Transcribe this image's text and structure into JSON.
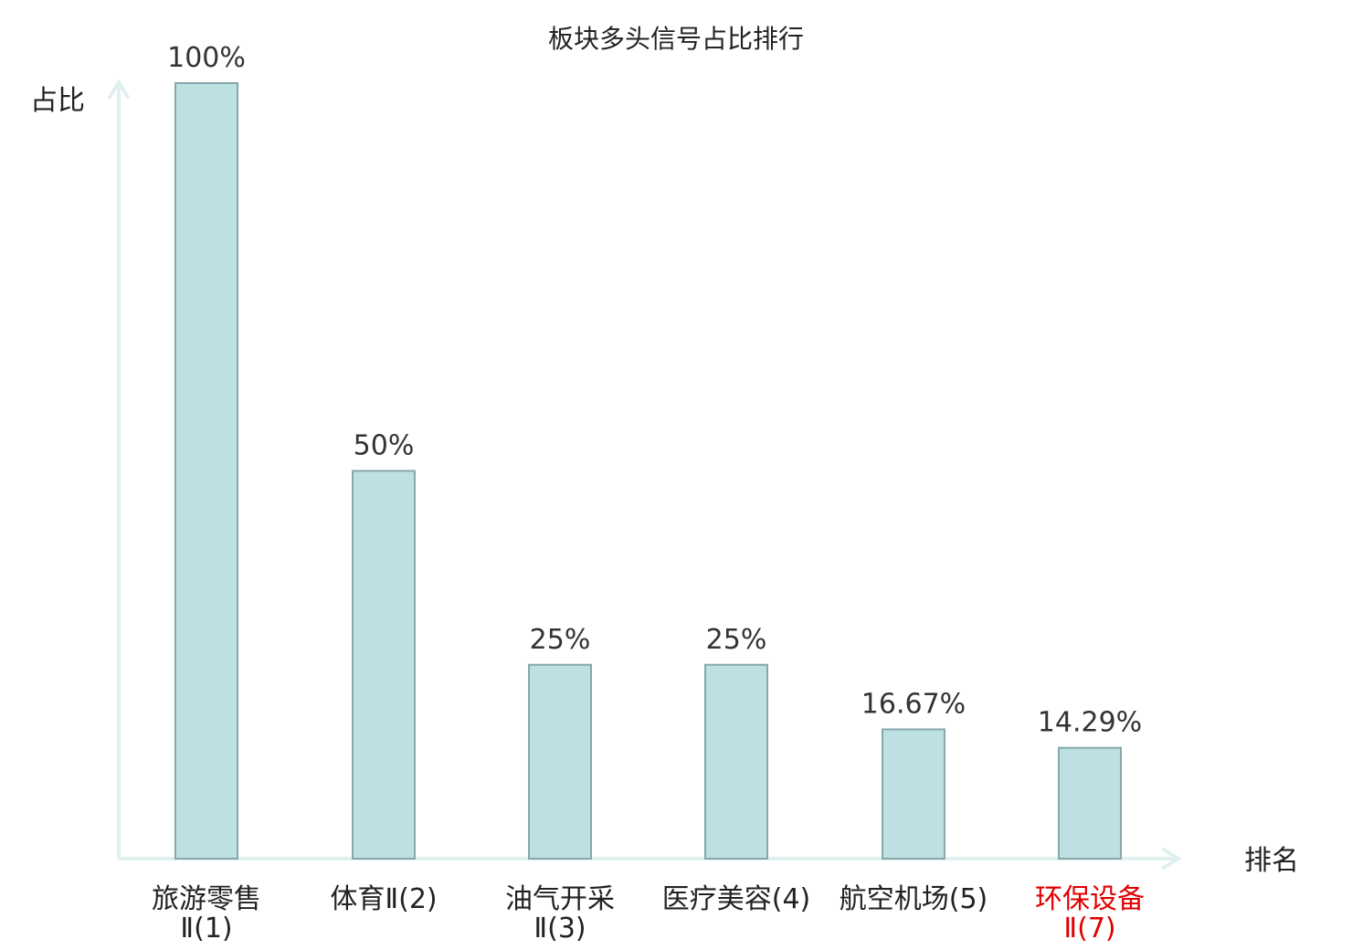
{
  "chart_data": {
    "type": "bar",
    "title": "板块多头信号占比排行",
    "xlabel": "排名",
    "ylabel": "占比",
    "ylim": [
      0,
      100
    ],
    "grid": false,
    "categories": [
      [
        "旅游零售",
        "Ⅱ(1)"
      ],
      [
        "体育Ⅱ(2)"
      ],
      [
        "油气开采",
        "Ⅱ(3)"
      ],
      [
        "医疗美容(4)"
      ],
      [
        "航空机场(5)"
      ],
      [
        "环保设备",
        "Ⅱ(7)"
      ]
    ],
    "values": [
      100,
      50,
      25,
      25,
      16.67,
      14.29
    ],
    "value_labels": [
      "100%",
      "50%",
      "25%",
      "25%",
      "16.67%",
      "14.29%"
    ],
    "highlight_index": 5,
    "colors": {
      "bar_fill": "#bde0e3",
      "bar_stroke": "#86a8ab",
      "axis": "#dff0ee",
      "highlight_text": "#e00000",
      "text": "#222222"
    }
  }
}
